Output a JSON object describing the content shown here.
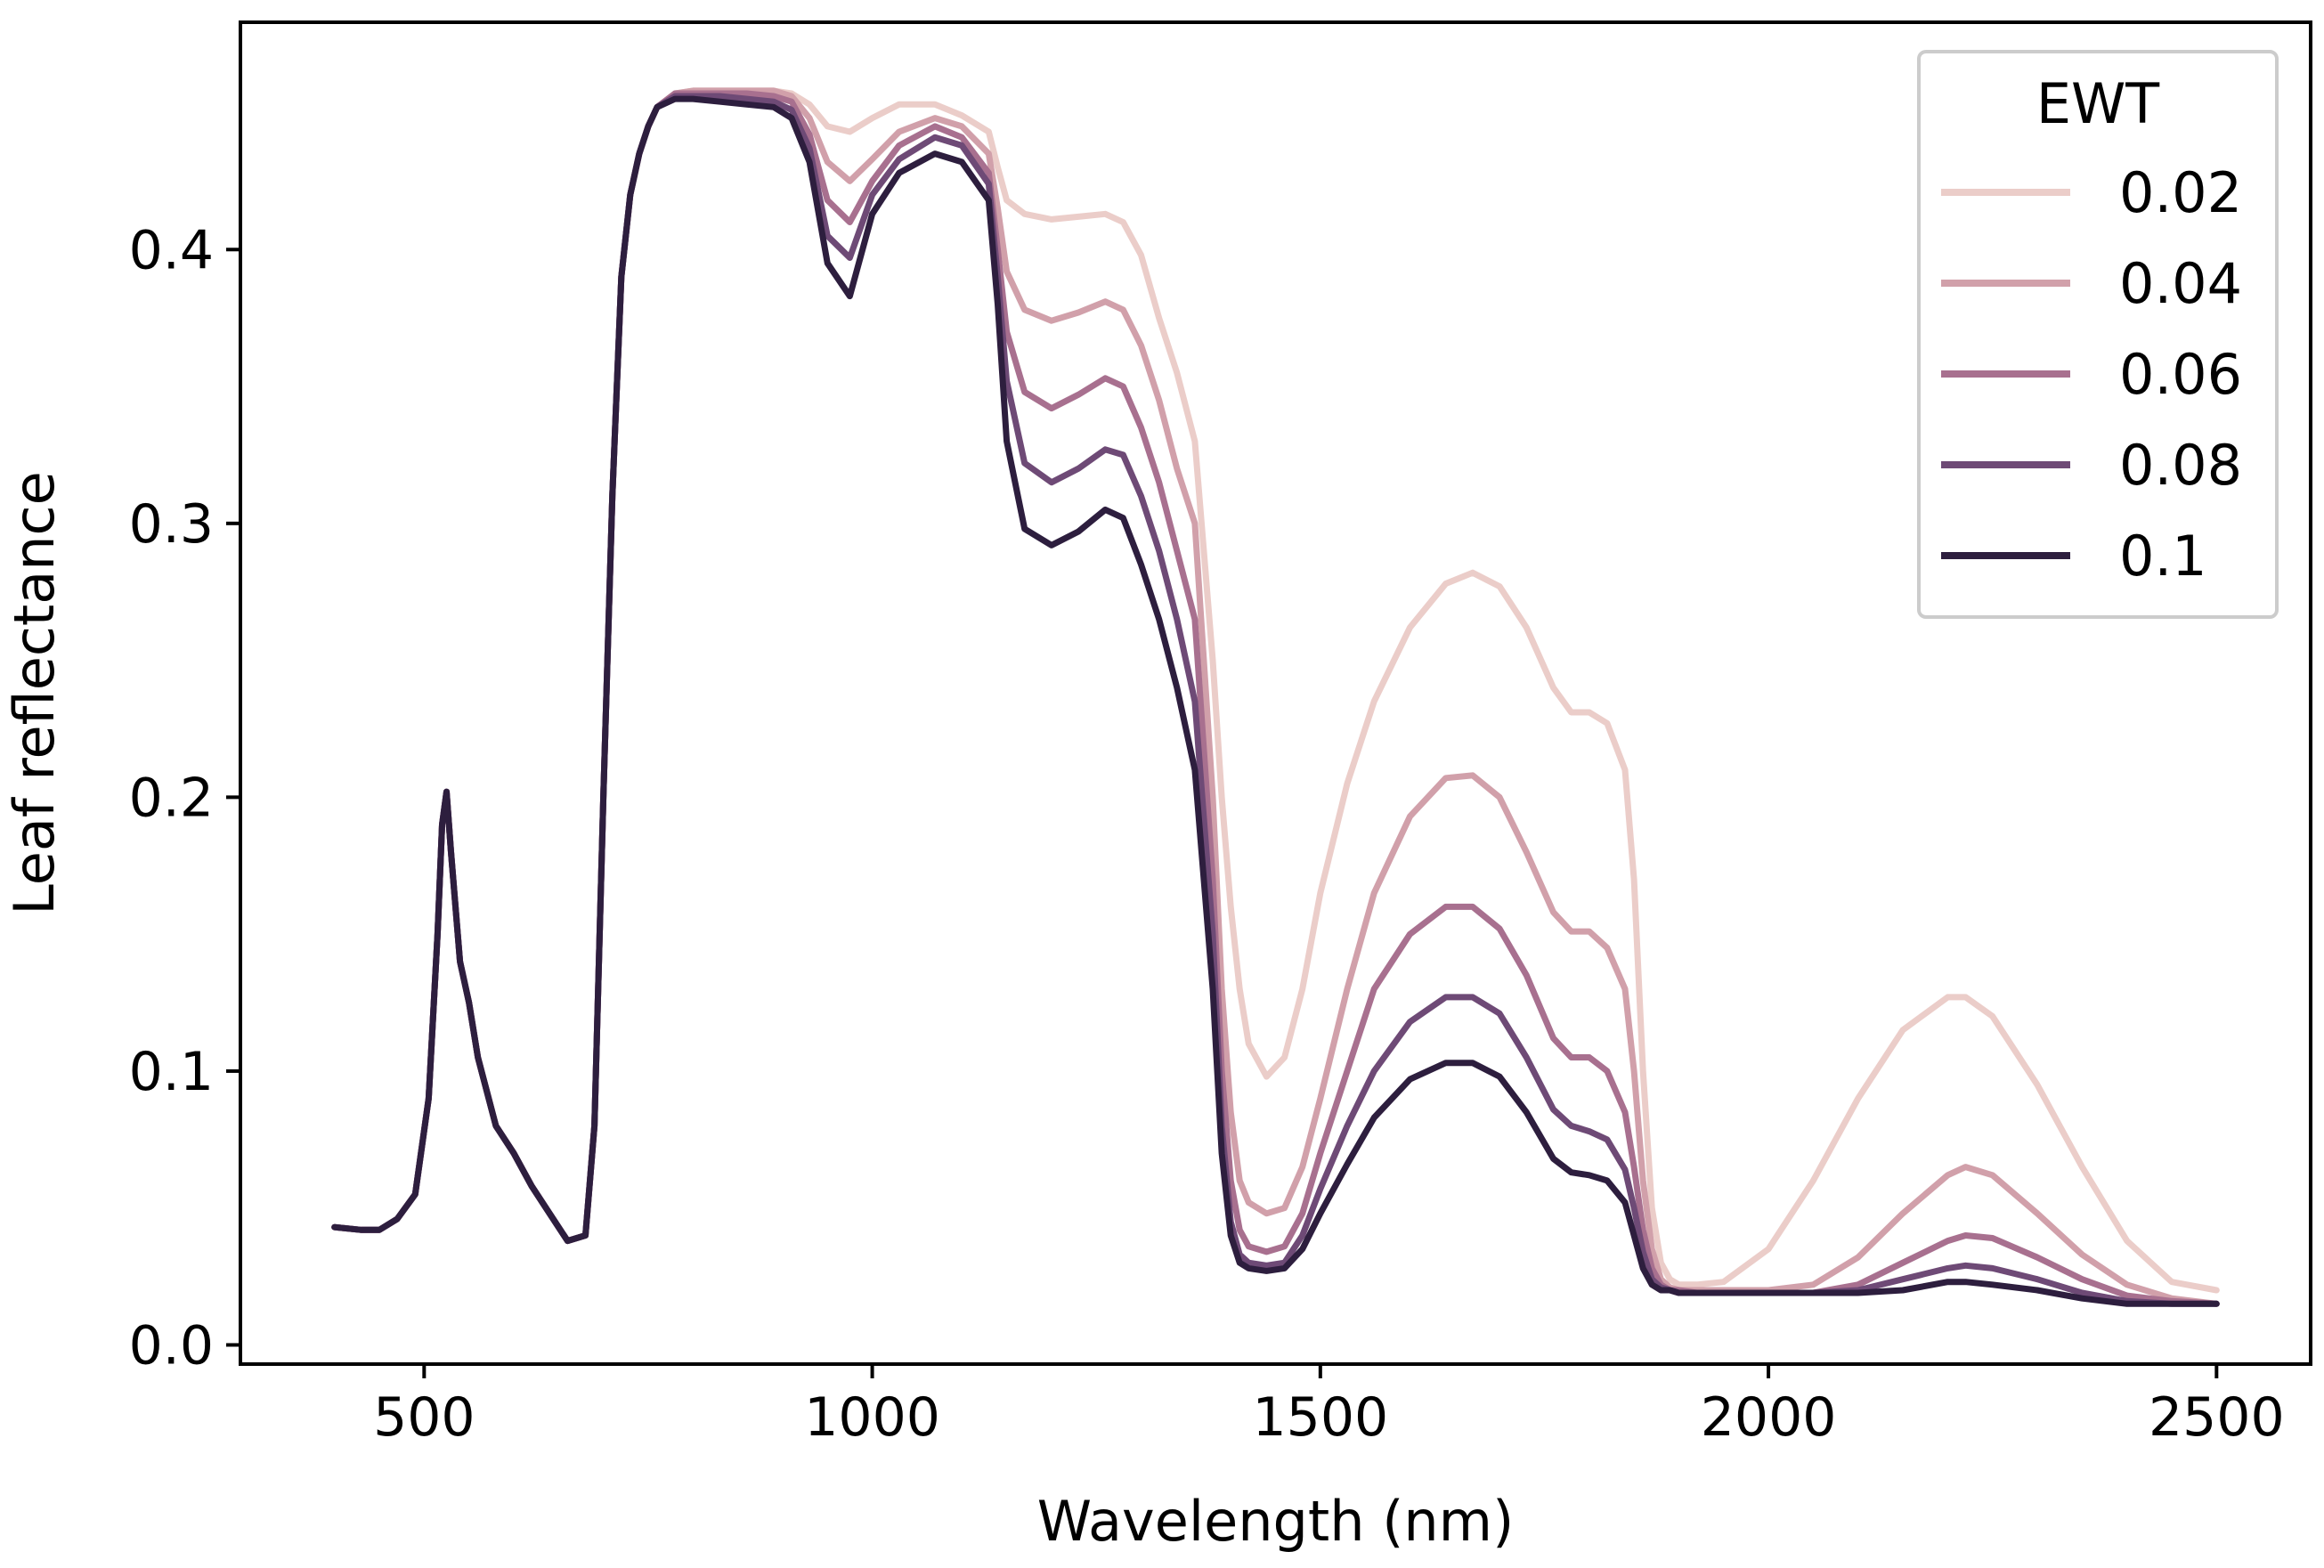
{
  "chart_data": {
    "type": "line",
    "title": "",
    "xlabel": "Wavelength (nm)",
    "ylabel": "Leaf reflectance",
    "xlim": [
      295,
      2605
    ],
    "ylim": [
      -0.007,
      0.483
    ],
    "xticks": [
      500,
      1000,
      1500,
      2000,
      2500
    ],
    "xtick_labels": [
      "500",
      "1000",
      "1500",
      "2000",
      "2500"
    ],
    "yticks": [
      0.0,
      0.1,
      0.2,
      0.3,
      0.4
    ],
    "ytick_labels": [
      "0.0",
      "0.1",
      "0.2",
      "0.3",
      "0.4"
    ],
    "grid": false,
    "legend": {
      "title": "EWT",
      "placement": "top-right"
    },
    "x": [
      400,
      430,
      450,
      470,
      490,
      505,
      515,
      520,
      525,
      530,
      540,
      550,
      560,
      580,
      600,
      620,
      640,
      660,
      680,
      690,
      700,
      710,
      720,
      730,
      740,
      750,
      760,
      780,
      800,
      830,
      860,
      890,
      910,
      930,
      950,
      975,
      1000,
      1030,
      1070,
      1100,
      1130,
      1140,
      1150,
      1170,
      1200,
      1230,
      1260,
      1280,
      1300,
      1320,
      1340,
      1360,
      1380,
      1390,
      1400,
      1410,
      1420,
      1440,
      1460,
      1480,
      1500,
      1530,
      1560,
      1600,
      1640,
      1670,
      1700,
      1730,
      1760,
      1780,
      1800,
      1820,
      1840,
      1850,
      1860,
      1870,
      1880,
      1890,
      1900,
      1920,
      1950,
      2000,
      2050,
      2100,
      2150,
      2200,
      2220,
      2250,
      2300,
      2350,
      2400,
      2450,
      2500
    ],
    "series": [
      {
        "name": "0.02",
        "color": "#ebcdc9",
        "values": [
          0.043,
          0.042,
          0.042,
          0.046,
          0.055,
          0.09,
          0.15,
          0.19,
          0.202,
          0.18,
          0.14,
          0.125,
          0.105,
          0.08,
          0.07,
          0.058,
          0.048,
          0.038,
          0.04,
          0.08,
          0.2,
          0.31,
          0.39,
          0.42,
          0.435,
          0.445,
          0.452,
          0.457,
          0.458,
          0.458,
          0.458,
          0.458,
          0.457,
          0.453,
          0.445,
          0.443,
          0.448,
          0.453,
          0.453,
          0.449,
          0.443,
          0.43,
          0.418,
          0.413,
          0.411,
          0.412,
          0.413,
          0.41,
          0.398,
          0.375,
          0.355,
          0.33,
          0.25,
          0.2,
          0.16,
          0.13,
          0.11,
          0.098,
          0.105,
          0.13,
          0.165,
          0.205,
          0.235,
          0.262,
          0.278,
          0.282,
          0.277,
          0.262,
          0.24,
          0.231,
          0.231,
          0.227,
          0.21,
          0.17,
          0.1,
          0.05,
          0.03,
          0.024,
          0.022,
          0.022,
          0.023,
          0.035,
          0.06,
          0.09,
          0.115,
          0.127,
          0.127,
          0.12,
          0.095,
          0.065,
          0.038,
          0.023,
          0.02
        ]
      },
      {
        "name": "0.04",
        "color": "#d1a0aa",
        "values": [
          0.043,
          0.042,
          0.042,
          0.046,
          0.055,
          0.09,
          0.15,
          0.19,
          0.202,
          0.18,
          0.14,
          0.125,
          0.105,
          0.08,
          0.07,
          0.058,
          0.048,
          0.038,
          0.04,
          0.08,
          0.2,
          0.31,
          0.39,
          0.42,
          0.435,
          0.445,
          0.452,
          0.457,
          0.458,
          0.458,
          0.458,
          0.458,
          0.456,
          0.448,
          0.432,
          0.425,
          0.433,
          0.443,
          0.448,
          0.445,
          0.435,
          0.415,
          0.392,
          0.378,
          0.374,
          0.377,
          0.381,
          0.378,
          0.365,
          0.345,
          0.32,
          0.3,
          0.2,
          0.13,
          0.085,
          0.06,
          0.052,
          0.048,
          0.05,
          0.065,
          0.09,
          0.13,
          0.165,
          0.193,
          0.207,
          0.208,
          0.2,
          0.18,
          0.158,
          0.151,
          0.151,
          0.145,
          0.13,
          0.1,
          0.06,
          0.035,
          0.024,
          0.021,
          0.02,
          0.02,
          0.02,
          0.02,
          0.022,
          0.032,
          0.048,
          0.062,
          0.065,
          0.062,
          0.048,
          0.033,
          0.022,
          0.017,
          0.015
        ]
      },
      {
        "name": "0.06",
        "color": "#a8708f",
        "values": [
          0.043,
          0.042,
          0.042,
          0.046,
          0.055,
          0.09,
          0.15,
          0.19,
          0.202,
          0.18,
          0.14,
          0.125,
          0.105,
          0.08,
          0.07,
          0.058,
          0.048,
          0.038,
          0.04,
          0.08,
          0.2,
          0.31,
          0.39,
          0.42,
          0.435,
          0.445,
          0.452,
          0.457,
          0.457,
          0.457,
          0.457,
          0.456,
          0.454,
          0.442,
          0.418,
          0.41,
          0.425,
          0.438,
          0.445,
          0.441,
          0.428,
          0.4,
          0.37,
          0.348,
          0.342,
          0.347,
          0.353,
          0.35,
          0.335,
          0.315,
          0.29,
          0.265,
          0.17,
          0.1,
          0.06,
          0.042,
          0.036,
          0.034,
          0.036,
          0.048,
          0.07,
          0.1,
          0.13,
          0.15,
          0.16,
          0.16,
          0.152,
          0.135,
          0.112,
          0.105,
          0.105,
          0.1,
          0.085,
          0.065,
          0.042,
          0.028,
          0.022,
          0.02,
          0.02,
          0.019,
          0.019,
          0.019,
          0.019,
          0.022,
          0.03,
          0.038,
          0.04,
          0.039,
          0.032,
          0.024,
          0.018,
          0.016,
          0.015
        ]
      },
      {
        "name": "0.08",
        "color": "#6e4a76",
        "values": [
          0.043,
          0.042,
          0.042,
          0.046,
          0.055,
          0.09,
          0.15,
          0.19,
          0.202,
          0.18,
          0.14,
          0.125,
          0.105,
          0.08,
          0.07,
          0.058,
          0.048,
          0.038,
          0.04,
          0.08,
          0.2,
          0.31,
          0.39,
          0.42,
          0.435,
          0.445,
          0.452,
          0.456,
          0.456,
          0.456,
          0.455,
          0.454,
          0.451,
          0.437,
          0.405,
          0.397,
          0.42,
          0.433,
          0.441,
          0.438,
          0.424,
          0.39,
          0.352,
          0.322,
          0.315,
          0.32,
          0.327,
          0.325,
          0.31,
          0.29,
          0.265,
          0.235,
          0.15,
          0.08,
          0.045,
          0.033,
          0.03,
          0.029,
          0.03,
          0.04,
          0.057,
          0.08,
          0.1,
          0.118,
          0.127,
          0.127,
          0.121,
          0.105,
          0.086,
          0.08,
          0.078,
          0.075,
          0.064,
          0.05,
          0.034,
          0.024,
          0.021,
          0.02,
          0.019,
          0.019,
          0.019,
          0.019,
          0.019,
          0.02,
          0.024,
          0.028,
          0.029,
          0.028,
          0.024,
          0.019,
          0.016,
          0.015,
          0.015
        ]
      },
      {
        "name": "0.1",
        "color": "#2d1e3e",
        "values": [
          0.043,
          0.042,
          0.042,
          0.046,
          0.055,
          0.09,
          0.15,
          0.19,
          0.202,
          0.18,
          0.14,
          0.125,
          0.105,
          0.08,
          0.07,
          0.058,
          0.048,
          0.038,
          0.04,
          0.08,
          0.2,
          0.31,
          0.39,
          0.42,
          0.435,
          0.445,
          0.452,
          0.455,
          0.455,
          0.454,
          0.453,
          0.452,
          0.448,
          0.432,
          0.395,
          0.383,
          0.413,
          0.428,
          0.435,
          0.432,
          0.418,
          0.38,
          0.33,
          0.298,
          0.292,
          0.297,
          0.305,
          0.302,
          0.285,
          0.265,
          0.24,
          0.21,
          0.13,
          0.07,
          0.04,
          0.03,
          0.028,
          0.027,
          0.028,
          0.035,
          0.048,
          0.066,
          0.083,
          0.097,
          0.103,
          0.103,
          0.098,
          0.085,
          0.068,
          0.063,
          0.062,
          0.06,
          0.052,
          0.04,
          0.028,
          0.022,
          0.02,
          0.02,
          0.019,
          0.019,
          0.019,
          0.019,
          0.019,
          0.019,
          0.02,
          0.023,
          0.023,
          0.022,
          0.02,
          0.017,
          0.015,
          0.015,
          0.015
        ]
      }
    ]
  }
}
